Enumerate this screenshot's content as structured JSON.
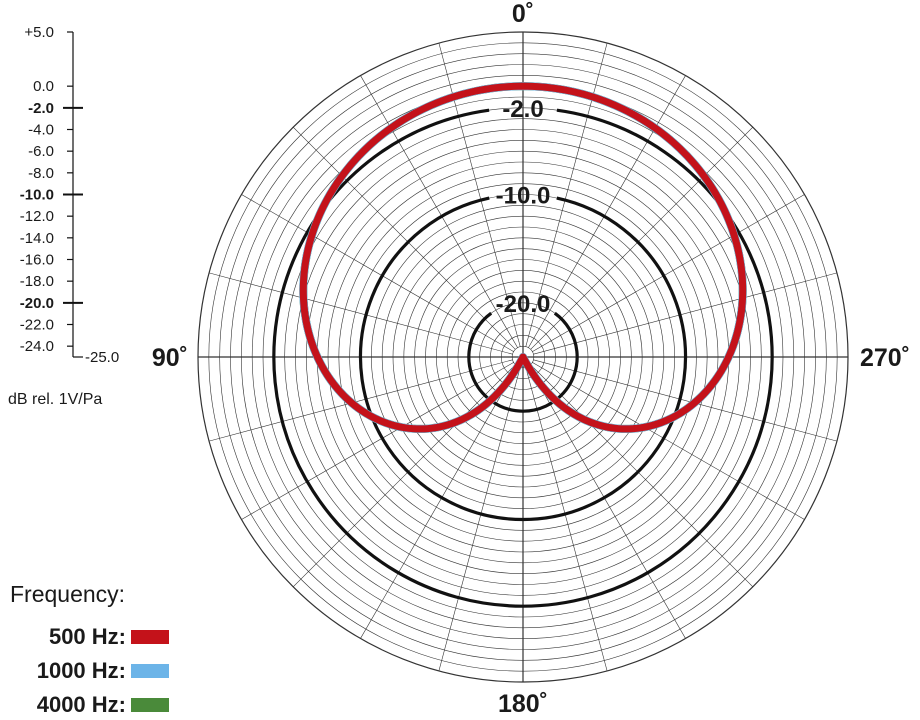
{
  "chart_data": {
    "type": "polar",
    "radial_unit_label": "dB rel. 1V/Pa",
    "radial_range": [
      -25.0,
      5.0
    ],
    "scale_ticks": [
      {
        "value": 5.0,
        "label": "+5.0",
        "major": false
      },
      {
        "value": 0.0,
        "label": "0.0",
        "major": false
      },
      {
        "value": -2.0,
        "label": "-2.0",
        "major": true
      },
      {
        "value": -4.0,
        "label": "-4.0",
        "major": false
      },
      {
        "value": -6.0,
        "label": "-6.0",
        "major": false
      },
      {
        "value": -8.0,
        "label": "-8.0",
        "major": false
      },
      {
        "value": -10.0,
        "label": "-10.0",
        "major": true
      },
      {
        "value": -12.0,
        "label": "-12.0",
        "major": false
      },
      {
        "value": -14.0,
        "label": "-14.0",
        "major": false
      },
      {
        "value": -16.0,
        "label": "-16.0",
        "major": false
      },
      {
        "value": -18.0,
        "label": "-18.0",
        "major": false
      },
      {
        "value": -20.0,
        "label": "-20.0",
        "major": true
      },
      {
        "value": -22.0,
        "label": "-22.0",
        "major": false
      },
      {
        "value": -24.0,
        "label": "-24.0",
        "major": false
      },
      {
        "value": -25.0,
        "label": "-25.0",
        "major": false
      }
    ],
    "grid_rings_db": [
      5,
      4,
      3,
      2,
      1,
      0,
      -1,
      -2,
      -3,
      -4,
      -5,
      -6,
      -7,
      -8,
      -9,
      -10,
      -11,
      -12,
      -13,
      -14,
      -15,
      -16,
      -17,
      -18,
      -19,
      -20,
      -21,
      -22,
      -23,
      -24
    ],
    "grid_spoke_step_deg": 15,
    "ring_labels": [
      {
        "value": -2.0,
        "label": "-2.0"
      },
      {
        "value": -10.0,
        "label": "-10.0"
      },
      {
        "value": -20.0,
        "label": "-20.0"
      }
    ],
    "angle_labels": [
      {
        "angle": 0,
        "label": "0˚"
      },
      {
        "angle": 90,
        "label": "90˚"
      },
      {
        "angle": 180,
        "label": "180˚"
      },
      {
        "angle": 270,
        "label": "270˚"
      }
    ],
    "legend": {
      "title": "Frequency:",
      "position": "bottom-left"
    },
    "series": [
      {
        "name": "4000 Hz",
        "color": "#4a8a3a",
        "pattern": "cardioid",
        "front_db": 0.0,
        "rear_db": -25.0,
        "order": 0
      },
      {
        "name": "1000 Hz",
        "color": "#6cb4e8",
        "pattern": "cardioid",
        "front_db": 0.0,
        "rear_db": -25.0,
        "order": 1
      },
      {
        "name": "500 Hz",
        "color": "#c4121a",
        "pattern": "cardioid",
        "front_db": 0.0,
        "rear_db": -25.0,
        "order": 2
      }
    ],
    "legend_items": [
      {
        "label": "500 Hz:",
        "color": "#c4121a"
      },
      {
        "label": "1000 Hz:",
        "color": "#6cb4e8"
      },
      {
        "label": "4000 Hz:",
        "color": "#4a8a3a"
      }
    ]
  }
}
